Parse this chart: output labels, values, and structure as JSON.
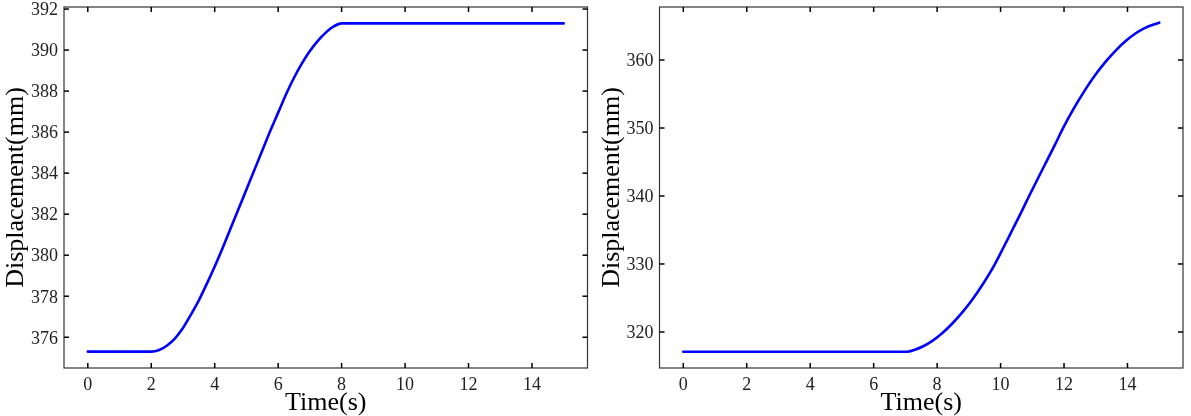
{
  "chart_data": [
    {
      "type": "line",
      "xlabel": "Time(s)",
      "ylabel": "Displacement(mm)",
      "xlim": [
        -0.75,
        15.75
      ],
      "ylim": [
        374.5,
        392.1
      ],
      "xticks": [
        0,
        2,
        4,
        6,
        8,
        10,
        12,
        14
      ],
      "yticks": [
        376,
        378,
        380,
        382,
        384,
        386,
        388,
        390,
        392
      ],
      "series": [
        {
          "color": "#0000ff",
          "x": [
            0,
            2.0,
            2.25,
            2.5,
            2.75,
            3.0,
            3.25,
            3.5,
            3.75,
            4.0,
            4.25,
            4.5,
            4.75,
            5.0,
            5.25,
            5.5,
            5.75,
            6.0,
            6.25,
            6.5,
            6.75,
            7.0,
            7.25,
            7.5,
            7.75,
            8.0,
            15
          ],
          "values": [
            375.3,
            375.3,
            375.38,
            375.6,
            375.95,
            376.45,
            377.1,
            377.8,
            378.6,
            379.45,
            380.35,
            381.3,
            382.25,
            383.2,
            384.15,
            385.1,
            386.05,
            386.95,
            387.85,
            388.65,
            389.35,
            389.95,
            390.45,
            390.85,
            391.15,
            391.3,
            391.3
          ]
        }
      ]
    },
    {
      "type": "line",
      "xlabel": "Time(s)",
      "ylabel": "Displacement(mm)",
      "xlim": [
        -0.75,
        15.75
      ],
      "ylim": [
        314.7,
        367.8
      ],
      "xticks": [
        0,
        2,
        4,
        6,
        8,
        10,
        12,
        14
      ],
      "yticks": [
        320,
        330,
        340,
        350,
        360
      ],
      "series": [
        {
          "color": "#0000ff",
          "x": [
            0,
            7.05,
            7.3,
            7.56,
            7.85,
            8.13,
            8.45,
            8.78,
            9.1,
            9.45,
            9.8,
            10.1,
            10.37,
            10.65,
            10.9,
            11.2,
            11.45,
            11.7,
            11.95,
            12.3,
            12.65,
            13.0,
            13.32,
            13.65,
            13.97,
            14.25,
            14.54,
            14.8,
            15.0
          ],
          "values": [
            317.1,
            317.1,
            317.4,
            317.9,
            318.7,
            319.7,
            321.1,
            322.8,
            324.7,
            327.1,
            329.8,
            332.5,
            335.0,
            337.6,
            340.0,
            342.8,
            345.1,
            347.4,
            349.8,
            352.8,
            355.5,
            357.9,
            359.8,
            361.5,
            362.9,
            363.9,
            364.7,
            365.2,
            365.5
          ]
        }
      ]
    }
  ]
}
